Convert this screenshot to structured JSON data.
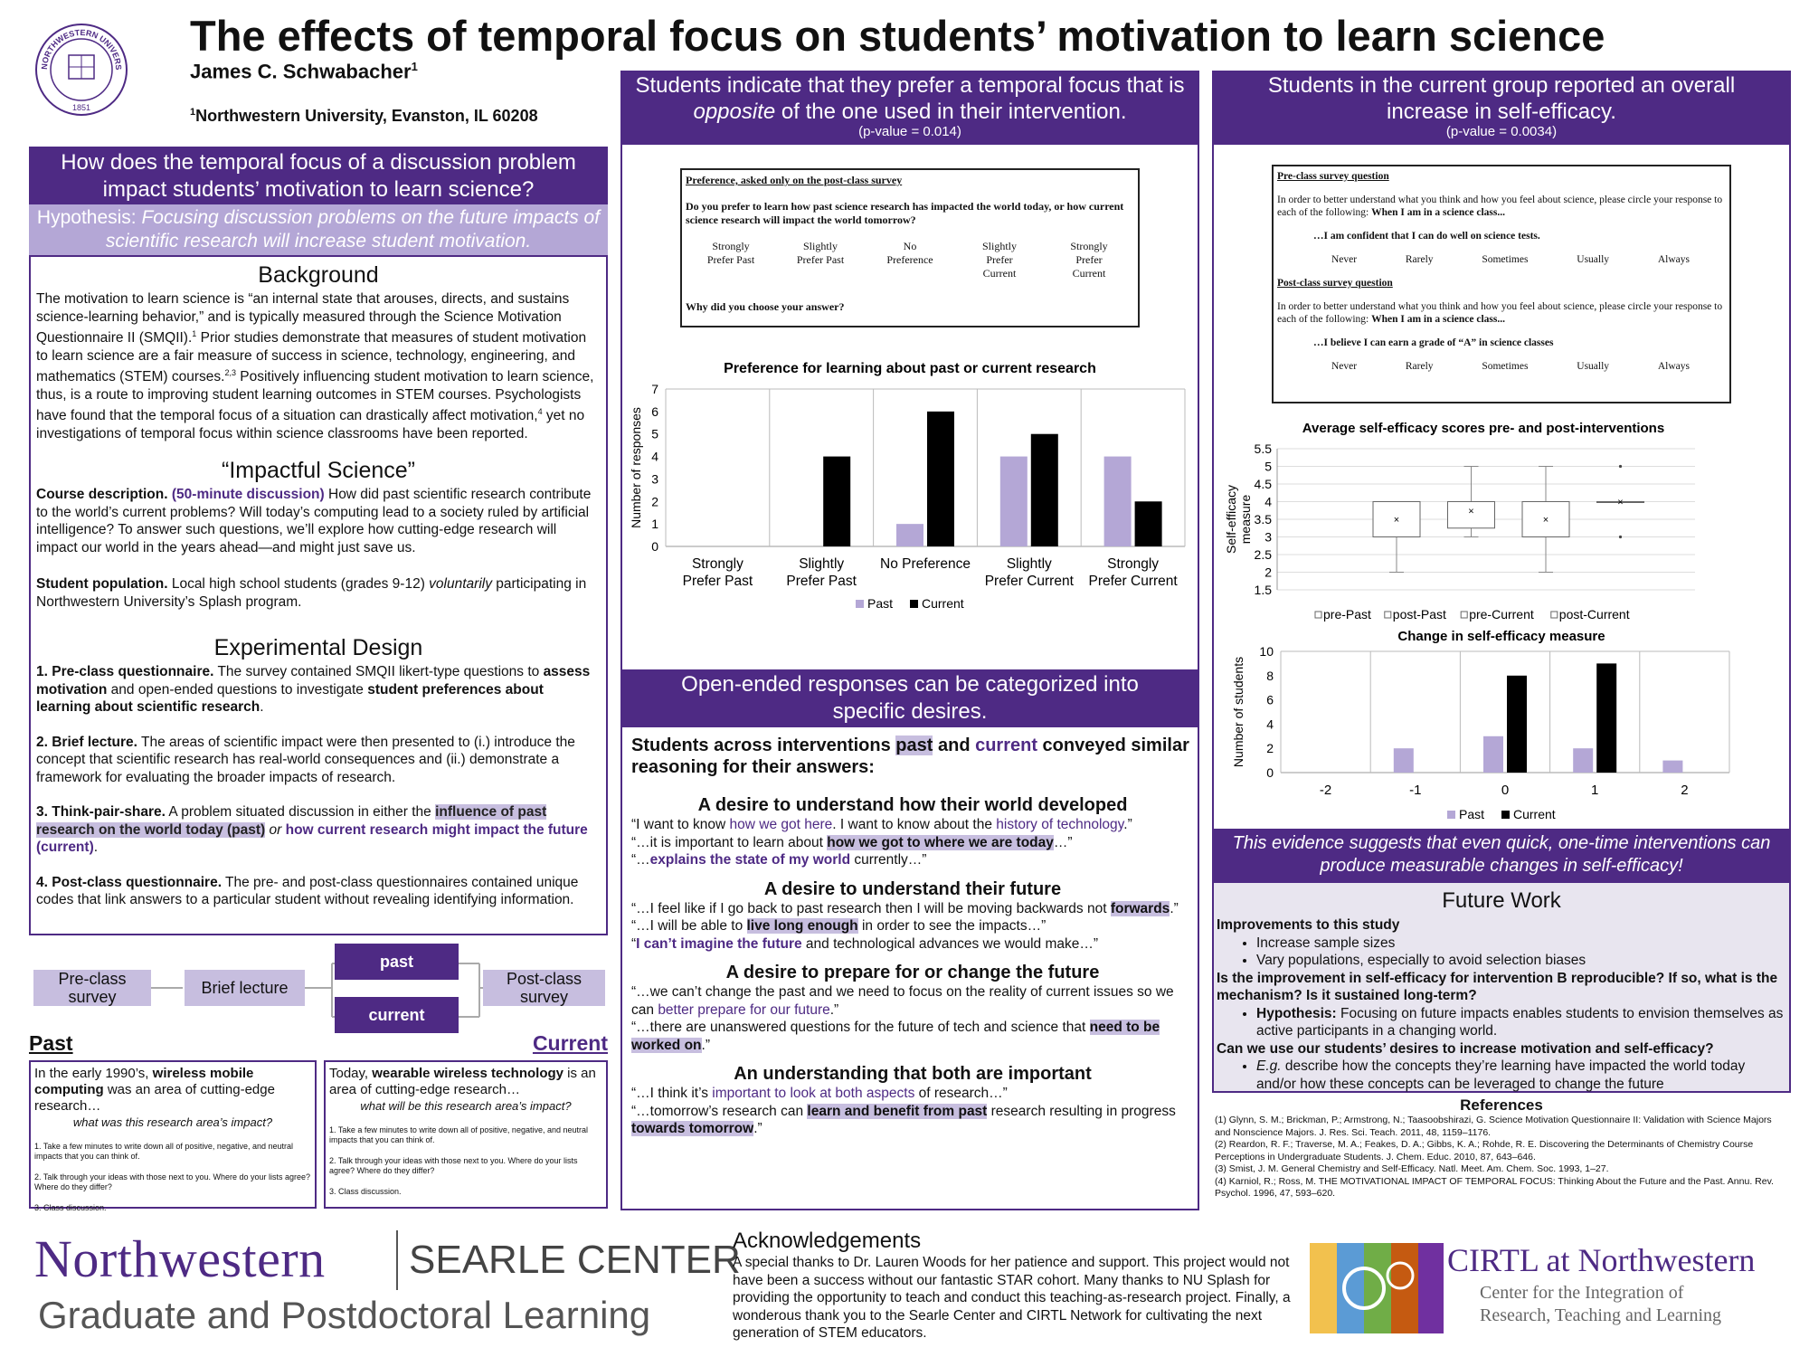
{
  "header": {
    "title": "The effects of temporal focus on students’ motivation to learn science",
    "author": "James C. Schwabacher",
    "author_sup": "1",
    "affil_sup": "1",
    "affiliation": "Northwestern University, Evanston, IL 60208",
    "seal_top": "NORTHWESTERN UNIVERSITY",
    "seal_year": "1851"
  },
  "left": {
    "question": "How does the temporal focus of a discussion problem impact students’ motivation to learn science?",
    "hyp_label": "Hypothesis: ",
    "hyp_text": "Focusing discussion problems on the future impacts of scientific research will increase student motivation.",
    "background_title": "Background",
    "bg1": "The motivation to learn science is “an internal state that arouses, directs, and sustains science-learning behavior,” and is typically measured through the Science Motivation Questionnaire II (SMQII).",
    "bg_sup1": "1",
    "bg2": " Prior studies demonstrate that measures of student motivation to learn science are a fair measure of success in science, technology, engineering, and mathematics (STEM) courses.",
    "bg_sup2": "2,3",
    "bg3": " Positively influencing student motivation to learn science, thus, is a route to improving student learning outcomes in STEM courses. Psychologists have found that the temporal focus of a situation can drastically affect motivation,",
    "bg_sup3": "4",
    "bg4": " yet no investigations of temporal focus within science classrooms have been reported.",
    "impactful_title": "“Impactful Science”",
    "course_label": "Course description.",
    "course_dur": "(50-minute discussion)",
    "course_text": " How did past scientific research contribute to the world’s current problems? Will today’s computing lead to a society ruled by artificial intelligence? To answer such questions, we’ll explore how cutting-edge research will impact our world in the years ahead—and might just save us.",
    "pop_label": "Student population.",
    "pop_text1": " Local high school students (grades 9-12) ",
    "pop_italic": "voluntarily",
    "pop_text2": " participating in Northwestern University’s Splash program.",
    "design_title": "Experimental Design",
    "s1_a": "1. Pre-class questionnaire.",
    "s1_b": " The survey contained SMQII likert-type questions to ",
    "s1_c": "assess motivation",
    "s1_d": " and open-ended questions to investigate ",
    "s1_e": "student preferences about learning about scientific research",
    "s1_f": ".",
    "s2_a": "2. Brief lecture.",
    "s2_b": " The areas of scientific impact were then presented to (i.) introduce the concept that scientific research has real-world consequences and (ii.) demonstrate a framework for evaluating the broader impacts of research.",
    "s3_a": "3. Think-pair-share.",
    "s3_b": " A problem situated discussion in either the ",
    "s3_c": "influence of past research on the world today (past)",
    "s3_d": " or ",
    "s3_e": "how current research might impact the future (current)",
    "s3_f": ".",
    "s4_a": "4. Post-class questionnaire.",
    "s4_b": " The pre- and post-class questionnaires contained unique codes that link answers to a particular student without revealing identifying information."
  },
  "flow": {
    "pre": "Pre-class survey",
    "lecture": "Brief lecture",
    "past": "past",
    "current": "current",
    "post": "Post-class survey"
  },
  "covers": {
    "past_label": "Past",
    "current_label": "Current",
    "past_1": "In the early 1990’s, ",
    "past_2": "wireless mobile computing",
    "past_3": " was an area of cutting-edge research…",
    "past_q": "what was this research area’s impact?",
    "cur_1": "Today, ",
    "cur_2": "wearable wireless technology",
    "cur_3": " is an area of cutting-edge research…",
    "cur_q": "what will be this research area’s impact?",
    "step1": "1. Take a few minutes to write down all of positive, negative, and neutral impacts that you can think of.",
    "step2": "2. Talk through your ideas with those next to you. Where do your lists agree? Where do they differ?",
    "step3": "3. Class discussion."
  },
  "middle": {
    "header1": "Students indicate that they prefer a temporal focus that is ",
    "header_italic": "opposite",
    "header2": " of the one used in their intervention.",
    "pvalue": "(p-value = 0.014)",
    "survey_title": "Preference, asked only on the post-class survey",
    "survey_q": "Do you prefer to learn how past science research has impacted the world today, or how current science research will impact the world tomorrow?",
    "scale": [
      "Strongly Prefer Past",
      "Slightly Prefer Past",
      "No Preference",
      "Slightly Prefer Current",
      "Strongly Prefer Current"
    ],
    "survey_why": "Why did you choose your answer?",
    "header_open": "Open-ended responses can be categorized into specific desires.",
    "lead1": "Students across interventions ",
    "lead_past": "past",
    "lead2": " and ",
    "lead_current": "current",
    "lead3": " conveyed similar reasoning for their answers:",
    "d1_title": "A desire to understand how their world developed",
    "d1_l1a": "“I want to know ",
    "d1_l1b": "how we got here",
    "d1_l1c": ". I want to know about the ",
    "d1_l1d": "history of technology",
    "d1_l1e": ".”",
    "d1_l2a": "“…it is important to learn about ",
    "d1_l2b": "how we got to where we are today",
    "d1_l2c": "…”",
    "d1_l3a": "“…",
    "d1_l3b": "explains the state of my world",
    "d1_l3c": " currently…”",
    "d2_title": "A desire to understand their future",
    "d2_l1a": "“…I feel like if I go back to past research then I  will be moving backwards not ",
    "d2_l1b": "forwards",
    "d2_l1c": ".”",
    "d2_l2a": "“…I will be able to ",
    "d2_l2b": "live long enough",
    "d2_l2c": " in order to see the impacts…”",
    "d2_l3a": "“",
    "d2_l3b": "I can’t imagine the future",
    "d2_l3c": " and technological advances we would make…”",
    "d3_title": "A desire to prepare for or change the future",
    "d3_l1a": "“…we can’t change the past and we need to focus on the reality of current issues so we can ",
    "d3_l1b": "better prepare for our future",
    "d3_l1c": ".”",
    "d3_l2a": "“…there are unanswered questions for the future of tech and science that ",
    "d3_l2b": "need to be worked on",
    "d3_l2c": ".”",
    "d4_title": "An understanding that both are important",
    "d4_l1a": "“…I think it’s ",
    "d4_l1b": "important to look at both aspects",
    "d4_l1c": " of research…”",
    "d4_l2a": "“…tomorrow’s research can ",
    "d4_l2b": "learn and benefit from past",
    "d4_l2c": " research resulting in progress ",
    "d4_l2d": "towards tomorrow",
    "d4_l2e": ".”"
  },
  "right": {
    "header": "Students in the current group reported an overall increase in self-efficacy.",
    "pvalue": "(p-value = 0.0034)",
    "pre_title": "Pre-class survey question",
    "pre_text": "In order to better understand what you think and how you feel about science, please circle your response to each of the following: ",
    "pre_bold": "When I am in a science class...",
    "pre_item": "…I am confident that I can do well on science tests.",
    "scale": [
      "Never",
      "Rarely",
      "Sometimes",
      "Usually",
      "Always"
    ],
    "post_title": "Post-class survey question",
    "post_text": "In order to better understand what you think and how you feel about science, please circle your response to each of the following: ",
    "post_bold": "When I am in a science class...",
    "post_item": "…I believe I can earn a grade of “A” in science classes",
    "conclusion": "This evidence suggests that even quick, one-time interventions can produce measurable changes in self-efficacy!",
    "future_title": "Future Work",
    "fw_h1": "Improvements to this study",
    "fw_b1": "Increase sample sizes",
    "fw_b2": "Vary populations, especially to avoid selection biases",
    "fw_h2": "Is the improvement in self-efficacy for intervention B reproducible? If so, what is the mechanism? Is it sustained long-term?",
    "fw_b3a": "Hypothesis:",
    "fw_b3b": " Focusing on future impacts enables students to envision themselves as active participants in a changing world.",
    "fw_h3": "Can we use our students’ desires to increase motivation and self-efficacy?",
    "fw_b4a": "E.g.",
    "fw_b4b": " describe how the concepts they’re learning have impacted the world today and/or how these concepts can be leveraged to change the future",
    "refs_title": "References",
    "refs": [
      "(1) Glynn, S. M.; Brickman, P.; Armstrong, N.; Taasoobshirazi, G. Science Motivation Questionnaire II: Validation with Science Majors and Nonscience Majors. J. Res. Sci. Teach. 2011, 48, 1159–1176.",
      "(2) Reardon, R. F.; Traverse, M. A.; Feakes, D. A.; Gibbs, K. A.; Rohde, R. E. Discovering the Determinants of Chemistry Course Perceptions in Undergraduate Students. J. Chem. Educ. 2010, 87, 643–646.",
      "(3) Smist, J. M. General Chemistry and Self-Efficacy. Natl. Meet. Am. Chem. Soc. 1993, 1–27.",
      "(4) Karniol, R.; Ross, M. THE MOTIVATIONAL IMPACT OF TEMPORAL FOCUS: Thinking About the Future and the Past. Annu. Rev. Psychol. 1996, 47, 593–620."
    ]
  },
  "footer": {
    "nu": "Northwestern",
    "searle": "SEARLE CENTER",
    "gpl": "Graduate and Postdoctoral Learning",
    "ack_title": "Acknowledgements",
    "ack_text": "A special thanks to Dr. Lauren Woods for her patience and support. This project would not have been a success without our fantastic STAR cohort. Many thanks to NU Splash for providing the opportunity to teach and conduct this teaching-as-research project. Finally, a wonderous thank you to the Searle Center and CIRTL Network for cultivating the next generation of STEM educators.",
    "cirtl": "CIRTL at Northwestern",
    "cirtl_sub1": "Center for the Integration of",
    "cirtl_sub2": "Research, Teaching and Learning"
  },
  "chart_data": [
    {
      "type": "bar",
      "title": "Preference for learning about past or current research",
      "categories": [
        "Strongly Prefer Past",
        "Slightly Prefer Past",
        "No Preference",
        "Slightly Prefer Current",
        "Strongly Prefer Current"
      ],
      "series": [
        {
          "name": "Past",
          "values": [
            0,
            0,
            1,
            4,
            4
          ],
          "color": "#b4a7d6"
        },
        {
          "name": "Current",
          "values": [
            0,
            4,
            6,
            5,
            2
          ],
          "color": "#000000"
        }
      ],
      "ylabel": "Number of responses",
      "ylim": [
        0,
        7
      ],
      "yticks": [
        0,
        1,
        2,
        3,
        4,
        5,
        6,
        7
      ],
      "legend": "bottom",
      "grid": true
    },
    {
      "type": "box",
      "title": "Average self-efficacy scores pre- and post-interventions",
      "ylabel": "Self-efficacy measure",
      "ylim": [
        1.5,
        5.5
      ],
      "yticks": [
        "1.5",
        "2",
        "2.5",
        "3",
        "3.5",
        "4",
        "4.5",
        "5",
        "5.5"
      ],
      "series": [
        {
          "name": "pre-Past",
          "min": 2,
          "q1": 3,
          "median": 3,
          "q3": 4,
          "max": 4,
          "mean": 3.5
        },
        {
          "name": "post-Past",
          "min": 3,
          "q1": 3.25,
          "median": 4,
          "q3": 4,
          "max": 5,
          "mean": 3.75
        },
        {
          "name": "pre-Current",
          "min": 2,
          "q1": 3,
          "median": 4,
          "q3": 4,
          "max": 5,
          "mean": 3.5
        },
        {
          "name": "post-Current",
          "min": 4,
          "q1": 4,
          "median": 4,
          "q3": 4,
          "max": 4,
          "mean": 4,
          "outliers": [
            3,
            5
          ]
        }
      ],
      "legend": "bottom",
      "grid": true
    },
    {
      "type": "bar",
      "title": "Change in self-efficacy measure",
      "categories": [
        "-2",
        "-1",
        "0",
        "1",
        "2"
      ],
      "series": [
        {
          "name": "Past",
          "values": [
            0,
            2,
            3,
            2,
            1
          ],
          "color": "#b4a7d6"
        },
        {
          "name": "Current",
          "values": [
            0,
            0,
            8,
            9,
            0
          ],
          "color": "#000000"
        }
      ],
      "ylabel": "Number of students",
      "ylim": [
        0,
        10
      ],
      "yticks": [
        0,
        2,
        4,
        6,
        8,
        10
      ],
      "legend": "bottom",
      "grid": true
    }
  ]
}
